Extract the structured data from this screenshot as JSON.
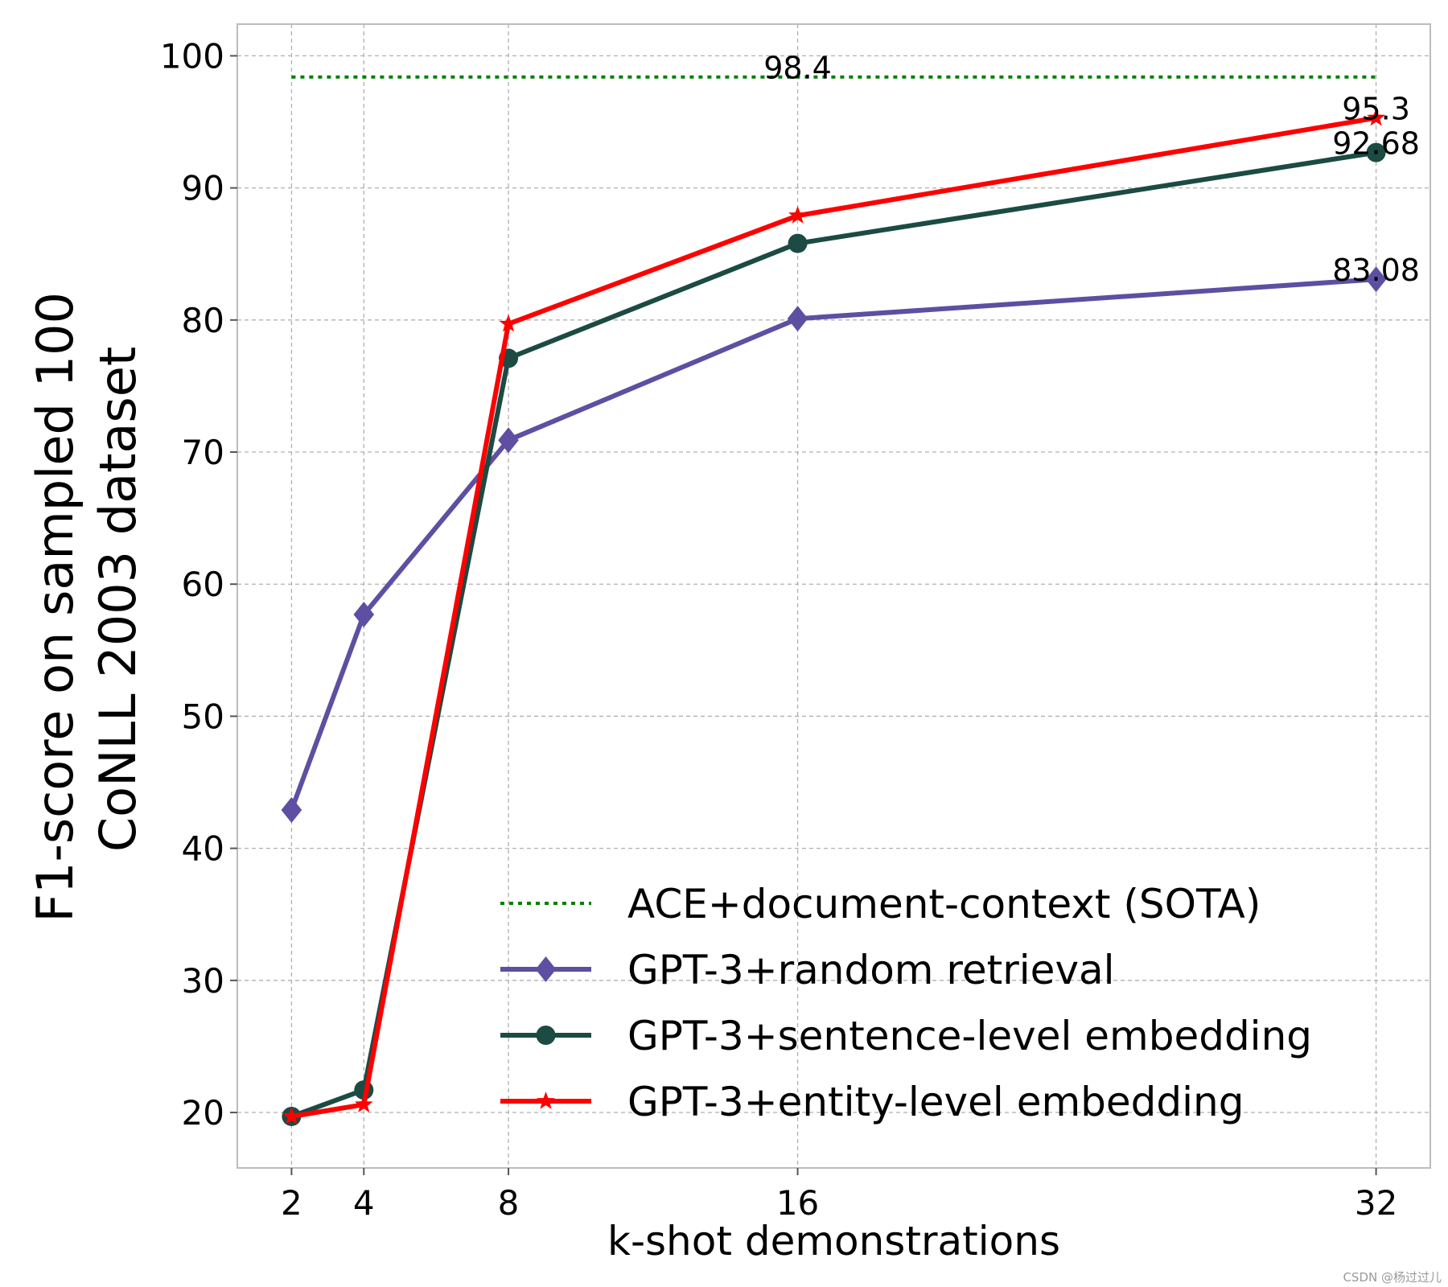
{
  "chart_data": {
    "type": "line",
    "xlabel": "k-shot demonstrations",
    "ylabel_lines": [
      "F1-score on sampled 100",
      "CoNLL 2003 dataset"
    ],
    "x": [
      2,
      4,
      8,
      16,
      32
    ],
    "x_ticks": [
      "2",
      "4",
      "8",
      "16",
      "32"
    ],
    "xlim": [
      0.5,
      33.5
    ],
    "ylim": [
      15.8,
      102.4
    ],
    "y_ticks": [
      "20",
      "30",
      "40",
      "50",
      "60",
      "70",
      "80",
      "90",
      "100"
    ],
    "grid": true,
    "legend_position": "lower-right",
    "series": [
      {
        "name": "ACE+document-context (SOTA)",
        "style": "dotted",
        "marker": "none",
        "color": "#008000",
        "x": [
          2,
          32
        ],
        "values": [
          98.4,
          98.4
        ]
      },
      {
        "name": "GPT-3+random retrieval",
        "style": "solid",
        "marker": "diamond",
        "color": "#5e4fa2",
        "values": [
          42.9,
          57.7,
          70.9,
          80.1,
          83.08
        ]
      },
      {
        "name": "GPT-3+sentence-level embedding",
        "style": "solid",
        "marker": "circle",
        "color": "#1b4b43",
        "values": [
          19.7,
          21.7,
          77.1,
          85.8,
          92.68
        ]
      },
      {
        "name": "GPT-3+entity-level embedding",
        "style": "solid",
        "marker": "star",
        "color": "#ff0000",
        "values": [
          19.7,
          20.6,
          79.7,
          87.9,
          95.3
        ]
      }
    ],
    "annotations": [
      {
        "text": "98.4",
        "x": 16,
        "y": 98.4
      },
      {
        "text": "95.3",
        "x": 32,
        "y": 95.3
      },
      {
        "text": "92.68",
        "x": 32,
        "y": 92.68
      },
      {
        "text": "83.08",
        "x": 32,
        "y": 83.08
      }
    ]
  },
  "watermark": "CSDN @杨过过儿"
}
